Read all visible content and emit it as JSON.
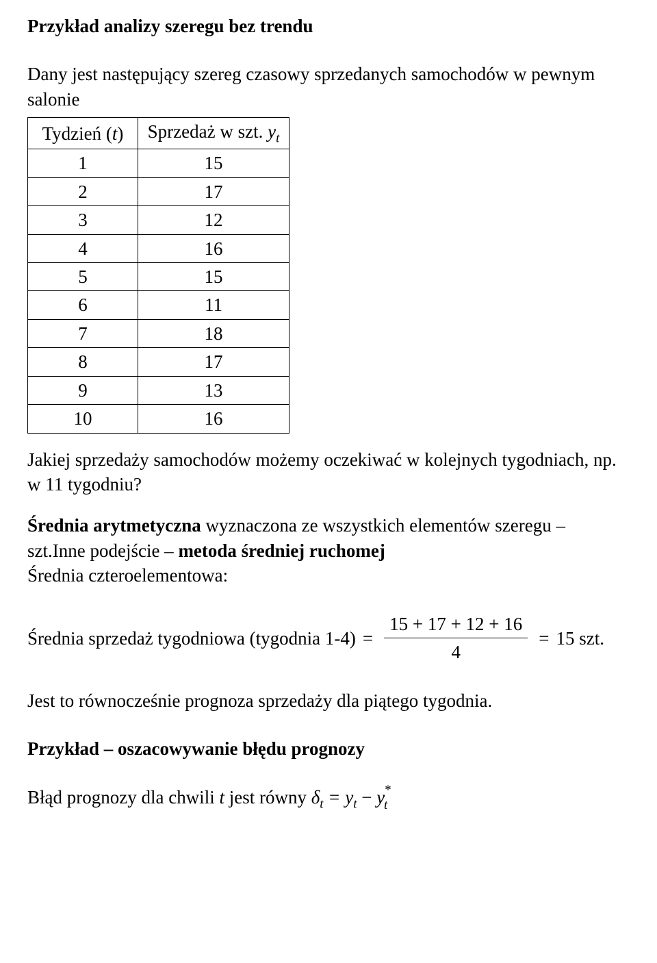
{
  "heading1": "Przykład analizy szeregu bez trendu",
  "intro": "Dany jest następujący szereg czasowy sprzedanych samochodów w pewnym salonie",
  "table": {
    "head_t_pre": "Tydzień (",
    "head_t_var": "t",
    "head_t_post": ")",
    "head_y_pre": "Sprzedaż w szt. ",
    "head_y_var": "y",
    "head_y_sub": "t",
    "rows": [
      {
        "t": "1",
        "y": "15"
      },
      {
        "t": "2",
        "y": "17"
      },
      {
        "t": "3",
        "y": "12"
      },
      {
        "t": "4",
        "y": "16"
      },
      {
        "t": "5",
        "y": "15"
      },
      {
        "t": "6",
        "y": "11"
      },
      {
        "t": "7",
        "y": "18"
      },
      {
        "t": "8",
        "y": "17"
      },
      {
        "t": "9",
        "y": "13"
      },
      {
        "t": "10",
        "y": "16"
      }
    ]
  },
  "q": "Jakiej sprzedaży samochodów możemy oczekiwać w kolejnych tygodniach, np. w 11 tygodniu?",
  "p2_bold1": "Średnia arytmetyczna",
  "p2_mid1": " wyznaczona ze wszystkich elementów szeregu –     szt.",
  "p2_mid2": "Inne podejście – ",
  "p2_bold2": "metoda średniej ruchomej",
  "p2_line3": "Średnia czteroelementowa:",
  "avg": {
    "label": "Średnia sprzedaż tygodniowa (tygodnia 1-4)",
    "numerator": "15 + 17 + 12 + 16",
    "denominator": "4",
    "result": "15",
    "unit": " szt."
  },
  "prog_line": "Jest to równocześnie prognoza sprzedaży dla piątego tygodnia.",
  "heading2": "Przykład – oszacowywanie błędu prognozy",
  "err": {
    "prefix": "Błąd prognozy dla chwili ",
    "tvar": "t",
    "mid": " jest równy ",
    "delta": "δ",
    "delta_sub": "t",
    "eq": " = ",
    "y1": "y",
    "y1_sub": "t",
    "minus": " − ",
    "y2": "y",
    "y2_sub": "t",
    "y2_sup": "*"
  }
}
